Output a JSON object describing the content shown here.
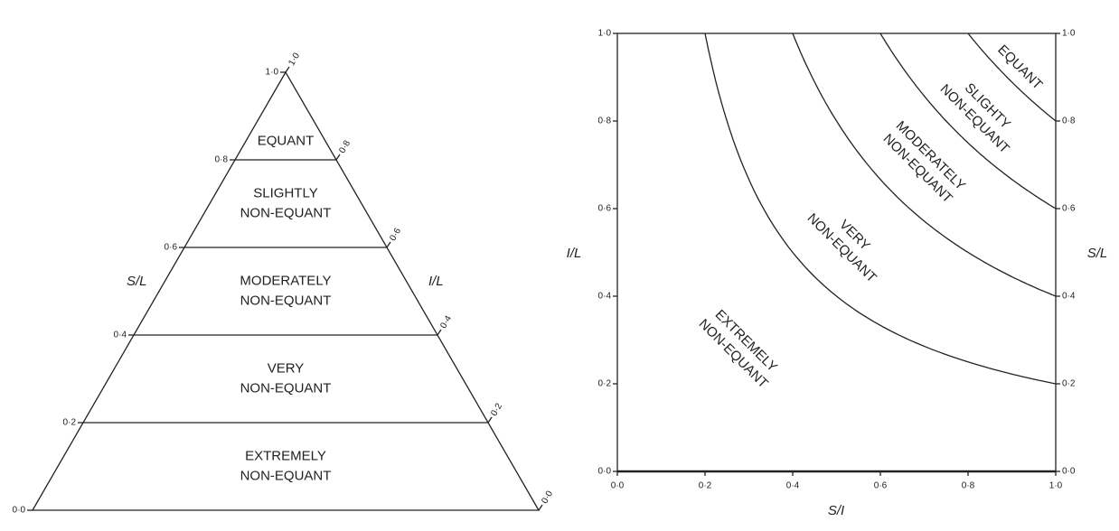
{
  "triangle": {
    "left_axis_title": "S/L",
    "right_axis_title": "I/L",
    "left_ticks": [
      "1·0",
      "0·8",
      "0·6",
      "0·4",
      "0·2",
      "0·0"
    ],
    "right_ticks": [
      "1·0",
      "0·8",
      "0·6",
      "0·4",
      "0·2",
      "0·0"
    ],
    "zones": [
      [
        "EQUANT"
      ],
      [
        "SLIGHTLY",
        "NON-EQUANT"
      ],
      [
        "MODERATELY",
        "NON-EQUANT"
      ],
      [
        "VERY",
        "NON-EQUANT"
      ],
      [
        "EXTREMELY",
        "NON-EQUANT"
      ]
    ]
  },
  "square": {
    "x_axis_title": "S/I",
    "y_axis_title": "I/L",
    "right_axis_title": "S/L",
    "xticks": [
      "0·0",
      "0·2",
      "0·4",
      "0·6",
      "0·8",
      "1·0"
    ],
    "yticks": [
      "0·0",
      "0·2",
      "0·4",
      "0·6",
      "0·8",
      "1·0"
    ],
    "right_ticks": [
      "0·0",
      "0·2",
      "0·4",
      "0·6",
      "0·8",
      "1·0"
    ],
    "curves": [
      0.2,
      0.4,
      0.6,
      0.8
    ],
    "zones": [
      [
        "EXTREMELY",
        "NON-EQUANT"
      ],
      [
        "VERY",
        "NON-EQUANT"
      ],
      [
        "MODERATELY",
        "NON-EQUANT"
      ],
      [
        "SLIGHTY",
        "NON-EQUANT"
      ],
      [
        "EQUANT"
      ]
    ]
  }
}
